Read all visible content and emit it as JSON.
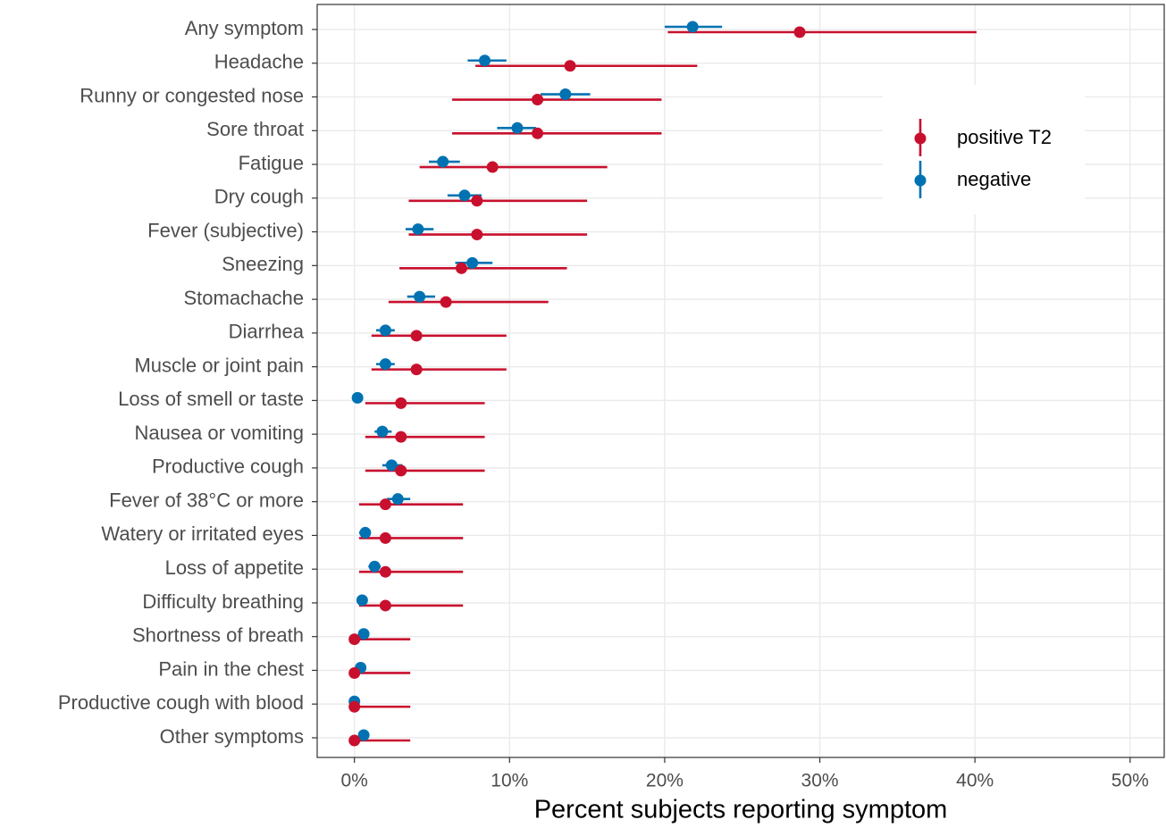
{
  "chart_data": {
    "type": "dot-errorbar",
    "x_label": "Percent subjects reporting symptom",
    "categories": [
      "Any symptom",
      "Headache",
      "Runny or congested nose",
      "Sore throat",
      "Fatigue",
      "Dry cough",
      "Fever (subjective)",
      "Sneezing",
      "Stomachache",
      "Diarrhea",
      "Muscle or joint pain",
      "Loss of smell or taste",
      "Nausea or vomiting",
      "Productive cough",
      "Fever of 38°C or more",
      "Watery or irritated eyes",
      "Loss of appetite",
      "Difficulty breathing",
      "Shortness of breath",
      "Pain in the chest",
      "Productive cough with blood",
      "Other symptoms"
    ],
    "series": [
      {
        "name": "positive T2",
        "color": "#c8102e",
        "values": [
          28.7,
          13.9,
          11.8,
          11.8,
          8.9,
          7.9,
          7.9,
          6.9,
          5.9,
          4.0,
          4.0,
          3.0,
          3.0,
          3.0,
          2.0,
          2.0,
          2.0,
          2.0,
          0,
          0,
          0,
          0
        ],
        "lower": [
          20.2,
          7.8,
          6.3,
          6.3,
          4.2,
          3.5,
          3.5,
          2.9,
          2.2,
          1.1,
          1.1,
          0.7,
          0.7,
          0.7,
          0.3,
          0.3,
          0.3,
          0.3,
          0,
          0,
          0,
          0
        ],
        "upper": [
          40.1,
          22.1,
          19.8,
          19.8,
          16.3,
          15.0,
          15.0,
          13.7,
          12.5,
          9.8,
          9.8,
          8.4,
          8.4,
          8.4,
          7.0,
          7.0,
          7.0,
          7.0,
          3.6,
          3.6,
          3.6,
          3.6
        ]
      },
      {
        "name": "negative",
        "color": "#0072b2",
        "values": [
          21.8,
          8.4,
          13.6,
          10.5,
          5.7,
          7.1,
          4.1,
          7.6,
          4.2,
          2.0,
          2.0,
          0.2,
          1.8,
          2.4,
          2.8,
          0.7,
          1.3,
          0.5,
          0.6,
          0.4,
          0,
          0.6
        ],
        "lower": [
          20.0,
          7.3,
          12.0,
          9.2,
          4.8,
          6.0,
          3.3,
          6.5,
          3.4,
          1.4,
          1.4,
          0,
          1.3,
          1.8,
          2.1,
          0.3,
          0.9,
          0.2,
          0.3,
          0.2,
          0,
          0.3
        ],
        "upper": [
          23.7,
          9.8,
          15.2,
          11.7,
          6.8,
          8.2,
          5.1,
          8.9,
          5.2,
          2.6,
          2.6,
          0.4,
          2.4,
          3.1,
          3.6,
          1.0,
          1.7,
          0.7,
          0.9,
          0.6,
          0,
          0.9
        ]
      }
    ],
    "xlim": [
      -2.4,
      52.2
    ],
    "xticks": [
      {
        "value": 0,
        "label": "0%"
      },
      {
        "value": 10,
        "label": "10%"
      },
      {
        "value": 20,
        "label": "20%"
      },
      {
        "value": 30,
        "label": "30%"
      },
      {
        "value": 40,
        "label": "40%"
      },
      {
        "value": 50,
        "label": "50%"
      }
    ],
    "grid": true,
    "legend": "upper right"
  }
}
